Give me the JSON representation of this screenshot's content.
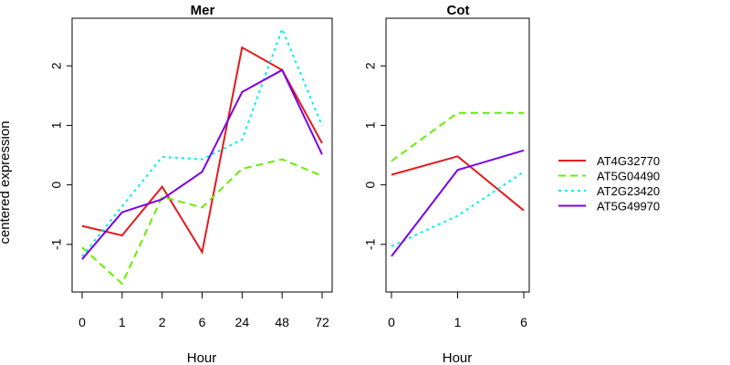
{
  "chart_data": [
    {
      "type": "line",
      "title": "Mer",
      "xlabel": "Hour",
      "ylabel": "centered expression",
      "categories": [
        "0",
        "1",
        "2",
        "6",
        "24",
        "48",
        "72"
      ],
      "ylim": [
        -1.8,
        2.8
      ],
      "yticks": [
        -1,
        0,
        1,
        2
      ],
      "series": [
        {
          "name": "AT4G32770",
          "color": "#e31a1c",
          "dash": "solid",
          "values": [
            -0.69,
            -0.85,
            -0.03,
            -1.13,
            2.31,
            1.93,
            0.7
          ]
        },
        {
          "name": "AT5G04490",
          "color": "#66ee00",
          "dash": "dashed",
          "values": [
            -1.05,
            -1.66,
            -0.2,
            -0.38,
            0.27,
            0.43,
            0.15
          ]
        },
        {
          "name": "AT2G23420",
          "color": "#00eeee",
          "dash": "dotted",
          "values": [
            -1.2,
            -0.36,
            0.47,
            0.43,
            0.76,
            2.62,
            0.99
          ]
        },
        {
          "name": "AT5G49970",
          "color": "#7a00e6",
          "dash": "solid",
          "values": [
            -1.25,
            -0.46,
            -0.24,
            0.22,
            1.56,
            1.93,
            0.51
          ]
        }
      ]
    },
    {
      "type": "line",
      "title": "Cot",
      "xlabel": "Hour",
      "categories": [
        "0",
        "1",
        "6"
      ],
      "ylim": [
        -1.8,
        2.8
      ],
      "yticks": [
        -1,
        0,
        1,
        2
      ],
      "series": [
        {
          "name": "AT4G32770",
          "color": "#e31a1c",
          "dash": "solid",
          "values": [
            0.17,
            0.48,
            -0.43
          ]
        },
        {
          "name": "AT5G04490",
          "color": "#66ee00",
          "dash": "dashed",
          "values": [
            0.4,
            1.21,
            1.21
          ]
        },
        {
          "name": "AT2G23420",
          "color": "#00eeee",
          "dash": "dotted",
          "values": [
            -1.03,
            -0.52,
            0.22
          ]
        },
        {
          "name": "AT5G49970",
          "color": "#7a00e6",
          "dash": "solid",
          "values": [
            -1.2,
            0.25,
            0.58
          ]
        }
      ]
    }
  ],
  "legend": {
    "position": "right",
    "items": [
      {
        "label": "AT4G32770",
        "color": "#e31a1c",
        "dash": "solid"
      },
      {
        "label": "AT5G04490",
        "color": "#66ee00",
        "dash": "dashed"
      },
      {
        "label": "AT2G23420",
        "color": "#00eeee",
        "dash": "dotted"
      },
      {
        "label": "AT5G49970",
        "color": "#7a00e6",
        "dash": "solid"
      }
    ]
  }
}
